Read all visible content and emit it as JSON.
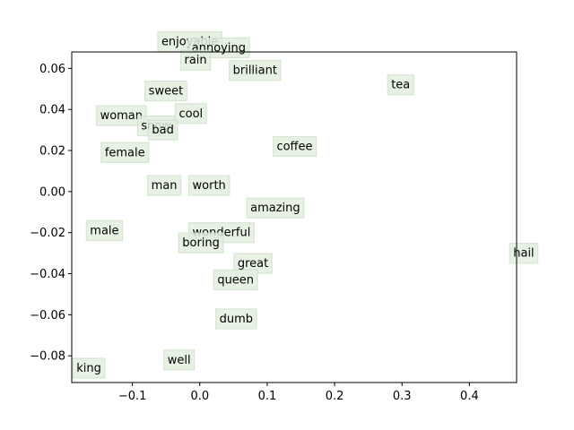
{
  "chart_data": {
    "type": "scatter",
    "xlim": [
      -0.19,
      0.47
    ],
    "ylim": [
      -0.093,
      0.068
    ],
    "xticks": [
      -0.1,
      0.0,
      0.1,
      0.2,
      0.3,
      0.4
    ],
    "xtick_labels": [
      "−0.1",
      "0.0",
      "0.1",
      "0.2",
      "0.3",
      "0.4"
    ],
    "yticks": [
      -0.08,
      -0.06,
      -0.04,
      -0.02,
      0.0,
      0.02,
      0.04,
      0.06
    ],
    "ytick_labels": [
      "−0.08",
      "−0.06",
      "−0.04",
      "−0.02",
      "0.00",
      "0.02",
      "0.04",
      "0.06"
    ],
    "grid": false,
    "points": [
      {
        "label": "enjoyable",
        "x": -0.057,
        "y": 0.0695
      },
      {
        "label": "annoying",
        "x": -0.012,
        "y": 0.0665
      },
      {
        "label": "rain",
        "x": -0.023,
        "y": 0.0605
      },
      {
        "label": "brilliant",
        "x": 0.049,
        "y": 0.0555
      },
      {
        "label": "tea",
        "x": 0.284,
        "y": 0.0485
      },
      {
        "label": "sweet",
        "x": -0.076,
        "y": 0.0455
      },
      {
        "label": "woman",
        "x": -0.148,
        "y": 0.0335
      },
      {
        "label": "cool",
        "x": -0.031,
        "y": 0.0345
      },
      {
        "label": "snow",
        "x": -0.087,
        "y": 0.0285
      },
      {
        "label": "bad",
        "x": -0.071,
        "y": 0.0265
      },
      {
        "label": "coffee",
        "x": 0.114,
        "y": 0.0185
      },
      {
        "label": "female",
        "x": -0.141,
        "y": 0.0155
      },
      {
        "label": "man",
        "x": -0.072,
        "y": -0.0005
      },
      {
        "label": "worth",
        "x": -0.011,
        "y": -0.0005
      },
      {
        "label": "amazing",
        "x": 0.075,
        "y": -0.0115
      },
      {
        "label": "male",
        "x": -0.163,
        "y": -0.0225
      },
      {
        "label": "wonderful",
        "x": -0.011,
        "y": -0.0235
      },
      {
        "label": "boring",
        "x": -0.026,
        "y": -0.0285
      },
      {
        "label": "hail",
        "x": 0.465,
        "y": -0.0335
      },
      {
        "label": "great",
        "x": 0.056,
        "y": -0.0385
      },
      {
        "label": "queen",
        "x": 0.026,
        "y": -0.0465
      },
      {
        "label": "dumb",
        "x": 0.029,
        "y": -0.0655
      },
      {
        "label": "well",
        "x": -0.048,
        "y": -0.0855
      },
      {
        "label": "king",
        "x": -0.183,
        "y": -0.0895
      }
    ]
  }
}
